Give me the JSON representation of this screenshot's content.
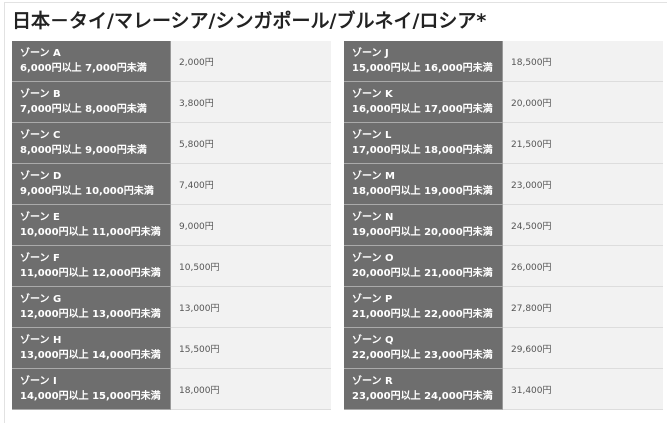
{
  "title": "日本－タイ/マレーシア/シンガポール/ブルネイ/ロシア*",
  "left": [
    {
      "zone": "ゾーン A",
      "range": "6,000円以上 7,000円未満",
      "price": "2,000円"
    },
    {
      "zone": "ゾーン B",
      "range": "7,000円以上 8,000円未満",
      "price": "3,800円"
    },
    {
      "zone": "ゾーン C",
      "range": "8,000円以上 9,000円未満",
      "price": "5,800円"
    },
    {
      "zone": "ゾーン D",
      "range": "9,000円以上 10,000円未満",
      "price": "7,400円"
    },
    {
      "zone": "ゾーン E",
      "range": "10,000円以上 11,000円未満",
      "price": "9,000円"
    },
    {
      "zone": "ゾーン F",
      "range": "11,000円以上 12,000円未満",
      "price": "10,500円"
    },
    {
      "zone": "ゾーン G",
      "range": "12,000円以上 13,000円未満",
      "price": "13,000円"
    },
    {
      "zone": "ゾーン H",
      "range": "13,000円以上 14,000円未満",
      "price": "15,500円"
    },
    {
      "zone": "ゾーン I",
      "range": "14,000円以上 15,000円未満",
      "price": "18,000円"
    }
  ],
  "right": [
    {
      "zone": "ゾーン J",
      "range": "15,000円以上 16,000円未満",
      "price": "18,500円"
    },
    {
      "zone": "ゾーン K",
      "range": "16,000円以上 17,000円未満",
      "price": "20,000円"
    },
    {
      "zone": "ゾーン L",
      "range": "17,000円以上 18,000円未満",
      "price": "21,500円"
    },
    {
      "zone": "ゾーン M",
      "range": "18,000円以上 19,000円未満",
      "price": "23,000円"
    },
    {
      "zone": "ゾーン N",
      "range": "19,000円以上 20,000円未満",
      "price": "24,500円"
    },
    {
      "zone": "ゾーン O",
      "range": "20,000円以上 21,000円未満",
      "price": "26,000円"
    },
    {
      "zone": "ゾーン P",
      "range": "21,000円以上 22,000円未満",
      "price": "27,800円"
    },
    {
      "zone": "ゾーン Q",
      "range": "22,000円以上 23,000円未満",
      "price": "29,600円"
    },
    {
      "zone": "ゾーン R",
      "range": "23,000円以上 24,000円未満",
      "price": "31,400円"
    }
  ]
}
